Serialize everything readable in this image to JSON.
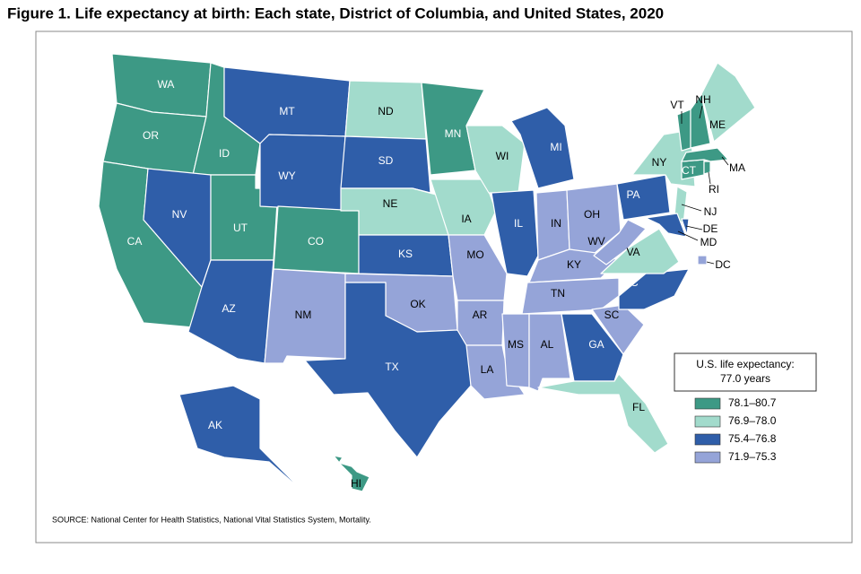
{
  "header": {
    "title": "Figure 1. Life expectancy at birth: Each state, District of Columbia, and United States, 2020"
  },
  "legend": {
    "summary": [
      "U.S. life expectancy:",
      "77.0 years"
    ],
    "classes": [
      {
        "label": "78.1–80.7",
        "color": "#3d9985"
      },
      {
        "label": "76.9–78.0",
        "color": "#a2dbcc"
      },
      {
        "label": "75.4–76.8",
        "color": "#2f5ea9"
      },
      {
        "label": "71.9–75.3",
        "color": "#95a4d8"
      }
    ]
  },
  "states": [
    {
      "label": "WA",
      "class": 0
    },
    {
      "label": "OR",
      "class": 0
    },
    {
      "label": "CA",
      "class": 0
    },
    {
      "label": "ID",
      "class": 0
    },
    {
      "label": "NV",
      "class": 2
    },
    {
      "label": "UT",
      "class": 0
    },
    {
      "label": "AZ",
      "class": 2
    },
    {
      "label": "MT",
      "class": 2
    },
    {
      "label": "WY",
      "class": 2
    },
    {
      "label": "CO",
      "class": 0
    },
    {
      "label": "NM",
      "class": 3
    },
    {
      "label": "ND",
      "class": 1
    },
    {
      "label": "SD",
      "class": 2
    },
    {
      "label": "NE",
      "class": 1
    },
    {
      "label": "KS",
      "class": 2
    },
    {
      "label": "OK",
      "class": 3
    },
    {
      "label": "TX",
      "class": 2
    },
    {
      "label": "MN",
      "class": 0
    },
    {
      "label": "IA",
      "class": 1
    },
    {
      "label": "MO",
      "class": 3
    },
    {
      "label": "AR",
      "class": 3
    },
    {
      "label": "LA",
      "class": 3
    },
    {
      "label": "WI",
      "class": 1
    },
    {
      "label": "IL",
      "class": 2
    },
    {
      "label": "MI",
      "class": 2
    },
    {
      "label": "IN",
      "class": 3
    },
    {
      "label": "OH",
      "class": 3
    },
    {
      "label": "KY",
      "class": 3
    },
    {
      "label": "TN",
      "class": 3
    },
    {
      "label": "MS",
      "class": 3
    },
    {
      "label": "AL",
      "class": 3
    },
    {
      "label": "GA",
      "class": 2
    },
    {
      "label": "FL",
      "class": 1
    },
    {
      "label": "SC",
      "class": 3
    },
    {
      "label": "NC",
      "class": 2
    },
    {
      "label": "VA",
      "class": 1
    },
    {
      "label": "WV",
      "class": 3
    },
    {
      "label": "PA",
      "class": 2
    },
    {
      "label": "NY",
      "class": 1
    },
    {
      "label": "NJ",
      "class": 1
    },
    {
      "label": "DE",
      "class": 2
    },
    {
      "label": "MD",
      "class": 2
    },
    {
      "label": "DC",
      "class": 3
    },
    {
      "label": "CT",
      "class": 0
    },
    {
      "label": "RI",
      "class": 0
    },
    {
      "label": "MA",
      "class": 0
    },
    {
      "label": "VT",
      "class": 0
    },
    {
      "label": "NH",
      "class": 0
    },
    {
      "label": "ME",
      "class": 1
    },
    {
      "label": "AK",
      "class": 2
    },
    {
      "label": "HI",
      "class": 0
    }
  ],
  "source": "SOURCE: National Center for Health Statistics, National Vital Statistics System, Mortality."
}
